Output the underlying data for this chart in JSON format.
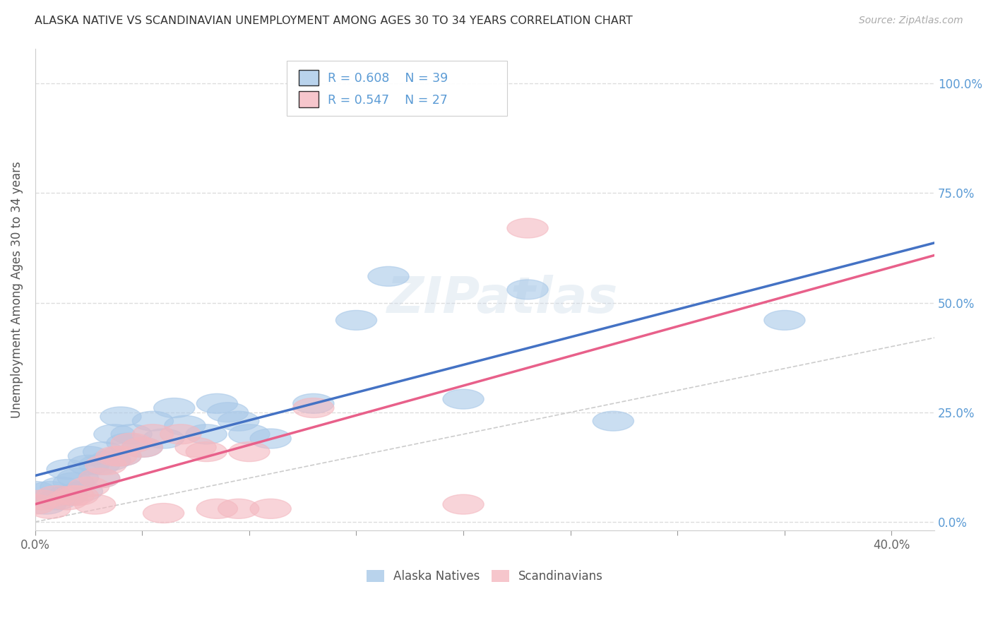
{
  "title": "ALASKA NATIVE VS SCANDINAVIAN UNEMPLOYMENT AMONG AGES 30 TO 34 YEARS CORRELATION CHART",
  "source": "Source: ZipAtlas.com",
  "ylabel": "Unemployment Among Ages 30 to 34 years",
  "xlim": [
    0.0,
    0.42
  ],
  "ylim": [
    -0.02,
    1.08
  ],
  "yticks": [
    0.0,
    0.25,
    0.5,
    0.75,
    1.0
  ],
  "ytick_labels": [
    "0.0%",
    "25.0%",
    "50.0%",
    "75.0%",
    "100.0%"
  ],
  "xticks": [
    0.0,
    0.05,
    0.1,
    0.15,
    0.2,
    0.25,
    0.3,
    0.35,
    0.4
  ],
  "xtick_labels": [
    "0.0%",
    "",
    "",
    "",
    "",
    "",
    "",
    "",
    "40.0%"
  ],
  "alaska_R": "0.608",
  "alaska_N": "39",
  "scandinavian_R": "0.547",
  "scandinavian_N": "27",
  "alaska_color": "#a8c8e8",
  "scandinavian_color": "#f4b8c0",
  "alaska_line_color": "#4472c4",
  "scandinavian_line_color": "#e8608a",
  "diagonal_color": "#cccccc",
  "background_color": "#ffffff",
  "grid_color": "#dddddd",
  "alaska_x": [
    0.0,
    0.005,
    0.007,
    0.01,
    0.012,
    0.015,
    0.015,
    0.018,
    0.02,
    0.022,
    0.025,
    0.025,
    0.03,
    0.03,
    0.032,
    0.035,
    0.037,
    0.04,
    0.04,
    0.043,
    0.045,
    0.05,
    0.055,
    0.06,
    0.065,
    0.07,
    0.08,
    0.085,
    0.09,
    0.095,
    0.1,
    0.11,
    0.13,
    0.15,
    0.165,
    0.2,
    0.23,
    0.27,
    0.35
  ],
  "alaska_y": [
    0.07,
    0.04,
    0.07,
    0.05,
    0.08,
    0.06,
    0.12,
    0.09,
    0.1,
    0.07,
    0.13,
    0.15,
    0.1,
    0.13,
    0.16,
    0.14,
    0.2,
    0.15,
    0.24,
    0.18,
    0.2,
    0.17,
    0.23,
    0.19,
    0.26,
    0.22,
    0.2,
    0.27,
    0.25,
    0.23,
    0.2,
    0.19,
    0.27,
    0.46,
    0.56,
    0.28,
    0.53,
    0.23,
    0.46
  ],
  "scandinavian_x": [
    0.0,
    0.003,
    0.007,
    0.01,
    0.015,
    0.018,
    0.02,
    0.025,
    0.028,
    0.03,
    0.033,
    0.038,
    0.04,
    0.045,
    0.05,
    0.055,
    0.06,
    0.068,
    0.075,
    0.08,
    0.085,
    0.095,
    0.1,
    0.11,
    0.13,
    0.2,
    0.23
  ],
  "scandinavian_y": [
    0.04,
    0.05,
    0.03,
    0.06,
    0.05,
    0.06,
    0.06,
    0.08,
    0.04,
    0.1,
    0.13,
    0.15,
    0.15,
    0.18,
    0.17,
    0.2,
    0.02,
    0.2,
    0.17,
    0.16,
    0.03,
    0.03,
    0.16,
    0.03,
    0.26,
    0.04,
    0.67
  ]
}
